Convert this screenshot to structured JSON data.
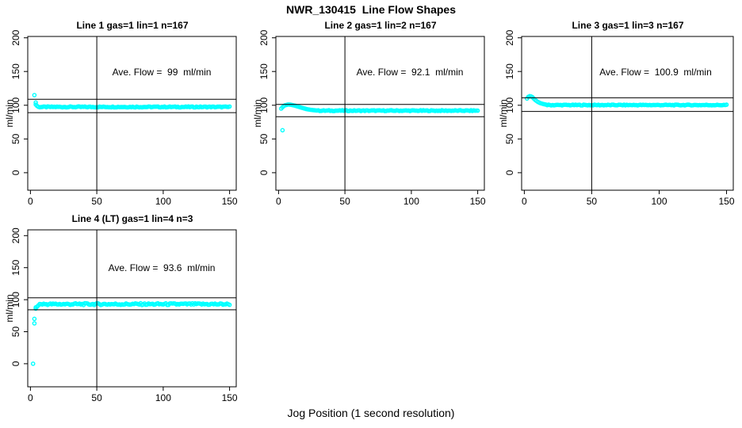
{
  "page": {
    "main_title": "NWR_130415  Line Flow Shapes",
    "x_axis_label": "Jog Position (1 second resolution)",
    "background_color": "#ffffff",
    "point_color": "#00ffff",
    "line_color": "#000000",
    "text_color": "#000000"
  },
  "chart_data": [
    {
      "type": "scatter",
      "title": "Line 1 gas=1 lin=1 n=167",
      "line_label": "Line 1",
      "gas": 1,
      "lin": 1,
      "n": 167,
      "annotation": "Ave. Flow =  99  ml/min",
      "ave_flow_ml_min": 99,
      "ylabel": "ml/min",
      "marker": "open-circle",
      "xticks": [
        0,
        50,
        100,
        150
      ],
      "yticks": [
        0,
        50,
        100,
        150,
        200
      ],
      "xlim": [
        -2,
        155
      ],
      "ylim": [
        -26,
        202
      ],
      "vline_x": 50,
      "limit_lines_y": [
        108.9,
        89.1
      ],
      "transient_points": [
        [
          3,
          115
        ],
        [
          4,
          104
        ],
        [
          4,
          101
        ],
        [
          5,
          99
        ]
      ],
      "steady": {
        "x_from": 6,
        "x_to": 150,
        "step": 1,
        "y": 97.5,
        "jitter": 0.7
      }
    },
    {
      "type": "scatter",
      "title": "Line 2 gas=1 lin=2 n=167",
      "line_label": "Line 2",
      "gas": 1,
      "lin": 2,
      "n": 167,
      "annotation": "Ave. Flow =  92.1  ml/min",
      "ave_flow_ml_min": 92.1,
      "ylabel": "ml/min",
      "marker": "open-circle",
      "xticks": [
        0,
        50,
        100,
        150
      ],
      "yticks": [
        0,
        50,
        100,
        150,
        200
      ],
      "xlim": [
        -2,
        155
      ],
      "ylim": [
        -26,
        202
      ],
      "vline_x": 50,
      "limit_lines_y": [
        101.3,
        82.9
      ],
      "transient_points": [
        [
          2,
          95
        ],
        [
          3,
          63
        ],
        [
          3,
          97
        ],
        [
          4,
          99
        ],
        [
          5,
          100
        ],
        [
          6,
          100.5
        ],
        [
          7,
          101
        ],
        [
          8,
          101
        ],
        [
          9,
          100.8
        ],
        [
          10,
          100.4
        ],
        [
          11,
          100
        ],
        [
          12,
          99.5
        ],
        [
          13,
          99
        ],
        [
          14,
          98.4
        ],
        [
          15,
          97.8
        ],
        [
          16,
          97.2
        ],
        [
          17,
          96.6
        ],
        [
          18,
          96
        ],
        [
          19,
          95.4
        ],
        [
          20,
          94.9
        ],
        [
          21,
          94.4
        ],
        [
          22,
          94
        ],
        [
          23,
          93.6
        ],
        [
          24,
          93.3
        ],
        [
          25,
          93
        ],
        [
          26,
          92.8
        ],
        [
          27,
          92.6
        ],
        [
          28,
          92.4
        ],
        [
          29,
          92.2
        ]
      ],
      "steady": {
        "x_from": 30,
        "x_to": 150,
        "step": 1,
        "y": 92,
        "jitter": 0.6
      }
    },
    {
      "type": "scatter",
      "title": "Line 3 gas=1 lin=3 n=167",
      "line_label": "Line 3",
      "gas": 1,
      "lin": 3,
      "n": 167,
      "annotation": "Ave. Flow =  100.9  ml/min",
      "ave_flow_ml_min": 100.9,
      "ylabel": "ml/min",
      "marker": "open-circle",
      "xticks": [
        0,
        50,
        100,
        150
      ],
      "yticks": [
        0,
        50,
        100,
        150,
        200
      ],
      "xlim": [
        -2,
        155
      ],
      "ylim": [
        -26,
        202
      ],
      "vline_x": 50,
      "limit_lines_y": [
        111.0,
        90.8
      ],
      "transient_points": [
        [
          2,
          110
        ],
        [
          3,
          112.5
        ],
        [
          4,
          113.5
        ],
        [
          5,
          113
        ],
        [
          6,
          112
        ],
        [
          7,
          110
        ],
        [
          8,
          108
        ],
        [
          9,
          106.5
        ],
        [
          10,
          105
        ],
        [
          11,
          104
        ],
        [
          12,
          103
        ],
        [
          13,
          102.4
        ],
        [
          14,
          101.9
        ],
        [
          15,
          101.4
        ],
        [
          16,
          101
        ]
      ],
      "steady": {
        "x_from": 17,
        "x_to": 150,
        "step": 1,
        "y": 100.3,
        "jitter": 0.6
      }
    },
    {
      "type": "scatter",
      "title": "Line 4 (LT) gas=1 lin=4 n=3",
      "line_label": "Line 4 (LT)",
      "gas": 1,
      "lin": 4,
      "n": 3,
      "annotation": "Ave. Flow =  93.6  ml/min",
      "ave_flow_ml_min": 93.6,
      "ylabel": "ml/min",
      "marker": "open-circle",
      "xticks": [
        0,
        50,
        100,
        150
      ],
      "yticks": [
        0,
        50,
        100,
        150,
        200
      ],
      "xlim": [
        -2,
        155
      ],
      "ylim": [
        -36,
        209
      ],
      "vline_x": 50,
      "limit_lines_y": [
        103.0,
        84.2
      ],
      "transient_points": [
        [
          2,
          0
        ],
        [
          3,
          70
        ],
        [
          3,
          63
        ],
        [
          4,
          86
        ],
        [
          4,
          88
        ],
        [
          5,
          89
        ],
        [
          6,
          91
        ]
      ],
      "steady": {
        "x_from": 7,
        "x_to": 150,
        "step": 1,
        "y": 93,
        "jitter": 1.4
      }
    }
  ]
}
